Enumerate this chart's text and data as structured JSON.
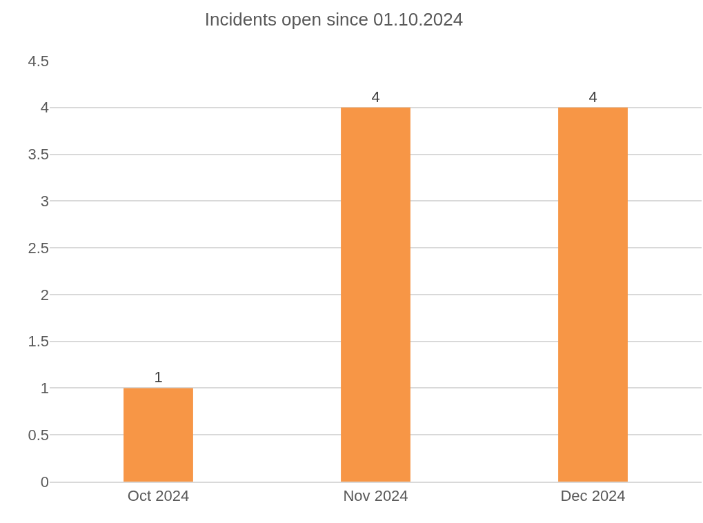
{
  "chart_data": {
    "type": "bar",
    "title": "Incidents open since 01.10.2024",
    "categories": [
      "Oct 2024",
      "Nov 2024",
      "Dec 2024"
    ],
    "values": [
      1,
      4,
      4
    ],
    "color": "#f79646",
    "ylim": [
      0,
      4.5
    ],
    "yticks": [
      0,
      0.5,
      1,
      1.5,
      2,
      2.5,
      3,
      3.5,
      4,
      4.5
    ],
    "grid": "y",
    "data_labels": true,
    "legend": false
  }
}
